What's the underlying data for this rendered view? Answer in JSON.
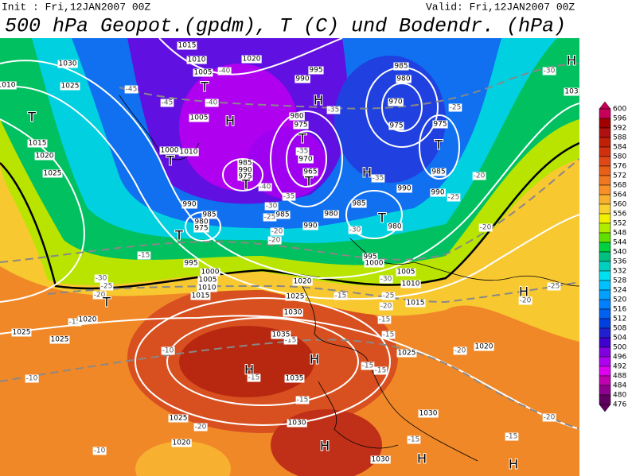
{
  "header": {
    "init": "Init : Fri,12JAN2007 00Z",
    "valid": "Valid: Fri,12JAN2007 00Z",
    "title": "500 hPa Geopot.(gpdm), T (C) und Bodendr. (hPa)"
  },
  "colorbar": {
    "labels": [
      "600",
      "596",
      "592",
      "588",
      "584",
      "580",
      "576",
      "572",
      "568",
      "564",
      "560",
      "556",
      "552",
      "548",
      "544",
      "540",
      "536",
      "532",
      "528",
      "524",
      "520",
      "516",
      "512",
      "508",
      "504",
      "500",
      "496",
      "492",
      "488",
      "484",
      "480",
      "476"
    ],
    "colors": [
      "#c8005a",
      "#a00000",
      "#b01010",
      "#c02008",
      "#d03010",
      "#e04818",
      "#e86018",
      "#f07820",
      "#f89028",
      "#f8b030",
      "#f8d030",
      "#f0f000",
      "#b0ec00",
      "#60e000",
      "#00d040",
      "#00c080",
      "#00d0c0",
      "#00e0f0",
      "#00c0ff",
      "#00a0ff",
      "#0080ff",
      "#0060f0",
      "#0040e0",
      "#2020d0",
      "#4000d0",
      "#8000e0",
      "#b000f0",
      "#e000f0",
      "#c000b0",
      "#900090",
      "#600060"
    ]
  },
  "map_labels": {
    "pressure": [
      "1015",
      "1010",
      "1020",
      "1030",
      "1025",
      "1005",
      "990",
      "995",
      "985",
      "980",
      "970",
      "975",
      "975",
      "1005",
      "1010",
      "1000",
      "985",
      "990",
      "975",
      "980",
      "975",
      "970",
      "965",
      "1015",
      "1020",
      "1025",
      "990",
      "985",
      "980",
      "975",
      "985",
      "990",
      "980",
      "985",
      "980",
      "990",
      "985",
      "990",
      "995",
      "1000",
      "1005",
      "1010",
      "1015",
      "1020",
      "1025",
      "995",
      "1000",
      "1005",
      "1010",
      "1015",
      "1020",
      "1025",
      "1030",
      "1025",
      "1025",
      "1020",
      "1035",
      "1035",
      "1030",
      "1025",
      "1020",
      "1030",
      "1030",
      "1010",
      "103"
    ],
    "temperature": [
      "-45",
      "-45",
      "-40",
      "-40",
      "-35",
      "-35",
      "-40",
      "-35",
      "-35",
      "-30",
      "-25",
      "-20",
      "-20",
      "-30",
      "-25",
      "-30",
      "-20",
      "-25",
      "-15",
      "-30",
      "-25",
      "-20",
      "-15",
      "-15",
      "-30",
      "-25",
      "-20",
      "-20",
      "-15",
      "-15",
      "-20",
      "-25",
      "-20",
      "-10",
      "-10",
      "-15",
      "-15",
      "-15",
      "-15",
      "-20",
      "-10",
      "-15",
      "-15",
      "-20",
      "-15"
    ],
    "centers": [
      "H",
      "T",
      "H",
      "T",
      "H",
      "T",
      "T",
      "T",
      "T",
      "T",
      "H",
      "T",
      "T",
      "H",
      "T",
      "H",
      "H",
      "H",
      "H",
      "H"
    ]
  }
}
